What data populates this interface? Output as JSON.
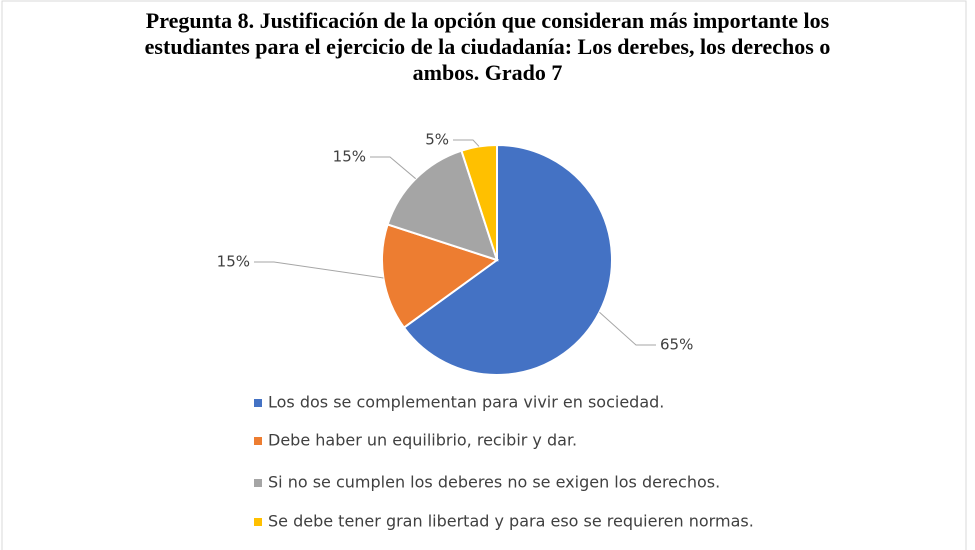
{
  "chart_data": {
    "type": "pie",
    "title": "Pregunta 8. Justificación de la opción que consideran más importante los estudiantes para el ejercicio de la ciudadanía: Los derebes,  los derechos o ambos. Grado 7",
    "categories": [
      "Los dos se complementan para vivir en sociedad.",
      "Debe haber un equilibrio, recibir y dar.",
      "Si no se cumplen los deberes no se exigen los derechos.",
      "Se debe tener gran libertad y para eso se requieren normas."
    ],
    "values": [
      65,
      15,
      15,
      5
    ],
    "value_labels": [
      "65%",
      "15%",
      "15%",
      "5%"
    ],
    "colors": [
      "#4472c4",
      "#ed7d31",
      "#a5a5a5",
      "#ffc000"
    ],
    "legend": "bottom"
  }
}
